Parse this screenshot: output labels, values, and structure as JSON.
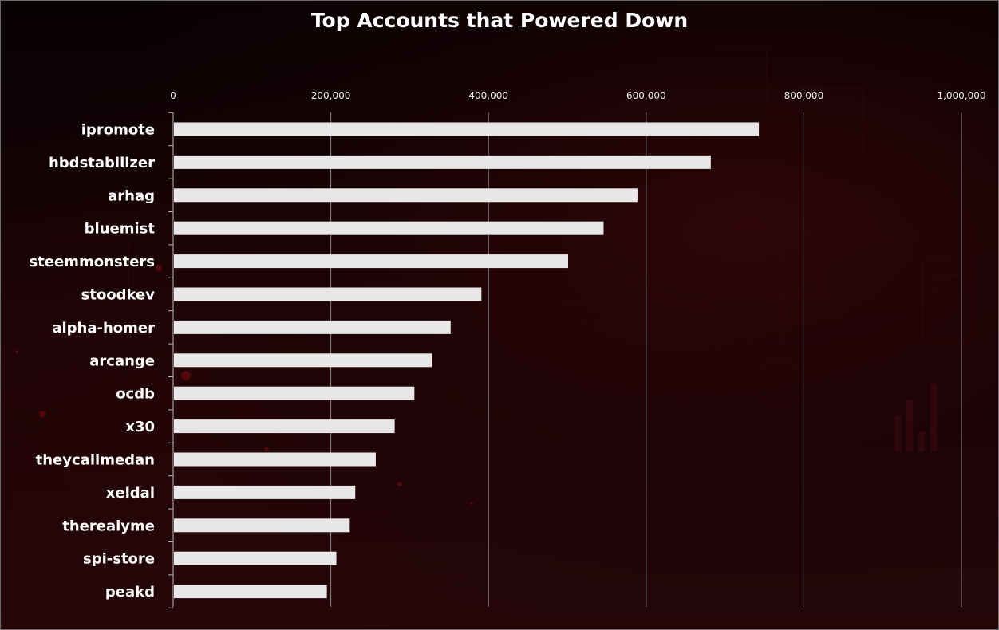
{
  "chart_data": {
    "type": "bar",
    "orientation": "horizontal",
    "title": "Top Accounts that Powered Down",
    "xlabel": "",
    "ylabel": "",
    "xlim": [
      0,
      1000000
    ],
    "x_ticks": [
      "0",
      "200,000",
      "400,000",
      "600,000",
      "800,000",
      "1,000,000"
    ],
    "x_tick_values": [
      0,
      200000,
      400000,
      600000,
      800000,
      1000000
    ],
    "axis_position": "top",
    "grid": true,
    "bar_color": "#e8e6e6",
    "categories": [
      "ipromote",
      "hbdstabilizer",
      "arhag",
      "bluemist",
      "steemmonsters",
      "stoodkev",
      "alpha-homer",
      "arcange",
      "ocdb",
      "x30",
      "theycallmedan",
      "xeldal",
      "therealyme",
      "spi-store",
      "peakd"
    ],
    "values": [
      742000,
      681000,
      588000,
      545000,
      500000,
      390000,
      351000,
      327000,
      305000,
      280000,
      256000,
      230000,
      223000,
      206000,
      194000
    ]
  }
}
